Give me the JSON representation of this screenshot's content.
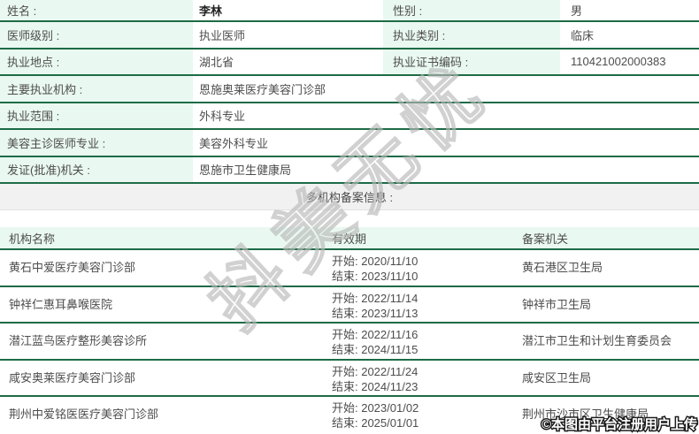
{
  "info_table": {
    "rows": [
      {
        "label1": "姓名 :",
        "value1": "李林",
        "label2": "性别 :",
        "value2": "男"
      },
      {
        "label1": "医师级别 :",
        "value1": "执业医师",
        "label2": "执业类别 :",
        "value2": "临床"
      },
      {
        "label1": "执业地点 :",
        "value1": "湖北省",
        "label2": "执业证书编码 :",
        "value2": "110421002000383"
      },
      {
        "label1": "主要执业机构 :",
        "value1": "恩施奥莱医疗美容门诊部"
      },
      {
        "label1": "执业范围 :",
        "value1": "外科专业"
      },
      {
        "label1": "美容主诊医师专业 :",
        "value1": "美容外科专业"
      },
      {
        "label1": "发证(批准)机关 :",
        "value1": "恩施市卫生健康局"
      }
    ]
  },
  "section": {
    "title": "多机构备案信息 :"
  },
  "filing_table": {
    "headers": {
      "org": "机构名称",
      "validity": "有效期",
      "agency": "备案机关"
    },
    "rows": [
      {
        "org": "黄石中爱医疗美容门诊部",
        "start": "开始: 2020/11/10",
        "end": "结束: 2023/11/10",
        "agency": "黄石港区卫生局"
      },
      {
        "org": "钟祥仁惠耳鼻喉医院",
        "start": "开始: 2022/11/14",
        "end": "结束: 2023/11/13",
        "agency": "钟祥市卫生局"
      },
      {
        "org": "潜江蓝鸟医疗整形美容诊所",
        "start": "开始: 2022/11/16",
        "end": "结束: 2024/11/15",
        "agency": "潜江市卫生和计划生育委员会"
      },
      {
        "org": "咸安奥莱医疗美容门诊部",
        "start": "开始: 2022/11/24",
        "end": "结束: 2024/11/23",
        "agency": "咸安区卫生局"
      },
      {
        "org": "荆州中爱铭医医疗美容门诊部",
        "start": "开始: 2023/01/02",
        "end": "结束: 2025/01/01",
        "agency": "荆州市沙市区卫生健康局"
      }
    ]
  },
  "watermark": "抖美无忧",
  "copyright": "©本图由平台注册用户上传",
  "colors": {
    "border_green": "#1d6b46",
    "cell_green": "#e9f8f0",
    "section_gray": "#f1f1f1",
    "text": "#4d4d4d"
  }
}
